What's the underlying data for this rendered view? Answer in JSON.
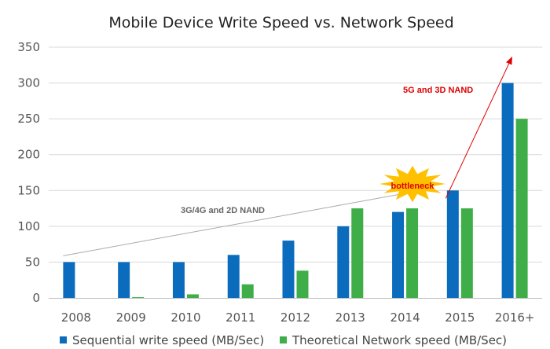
{
  "chart_data": {
    "type": "bar",
    "title": "Mobile Device Write Speed vs. Network Speed",
    "categories": [
      "2008",
      "2009",
      "2010",
      "2011",
      "2012",
      "2013",
      "2014",
      "2015",
      "2016+"
    ],
    "series": [
      {
        "name": "Sequential write speed (MB/Sec)",
        "values": [
          50,
          50,
          50,
          60,
          80,
          100,
          120,
          150,
          300
        ],
        "color": "#0b6bbd"
      },
      {
        "name": "Theoretical Network speed (MB/Sec)",
        "values": [
          0,
          1,
          5,
          19,
          38,
          125,
          125,
          125,
          250
        ],
        "color": "#3fae49"
      }
    ],
    "ylim": [
      0,
      350
    ],
    "yticks": [
      "0",
      "50",
      "100",
      "150",
      "200",
      "250",
      "300",
      "350"
    ],
    "grid": true,
    "legend_position": "bottom",
    "annotations": {
      "trend_label": "3G/4G and 2D NAND",
      "burst_label": "bottleneck",
      "arrow_label": "5G and 3D NAND"
    },
    "colors": {
      "trend_line": "#aaaaaa",
      "arrow": "#e00000",
      "burst_fill": "#ffc000",
      "grid": "#d9d9d9"
    }
  }
}
